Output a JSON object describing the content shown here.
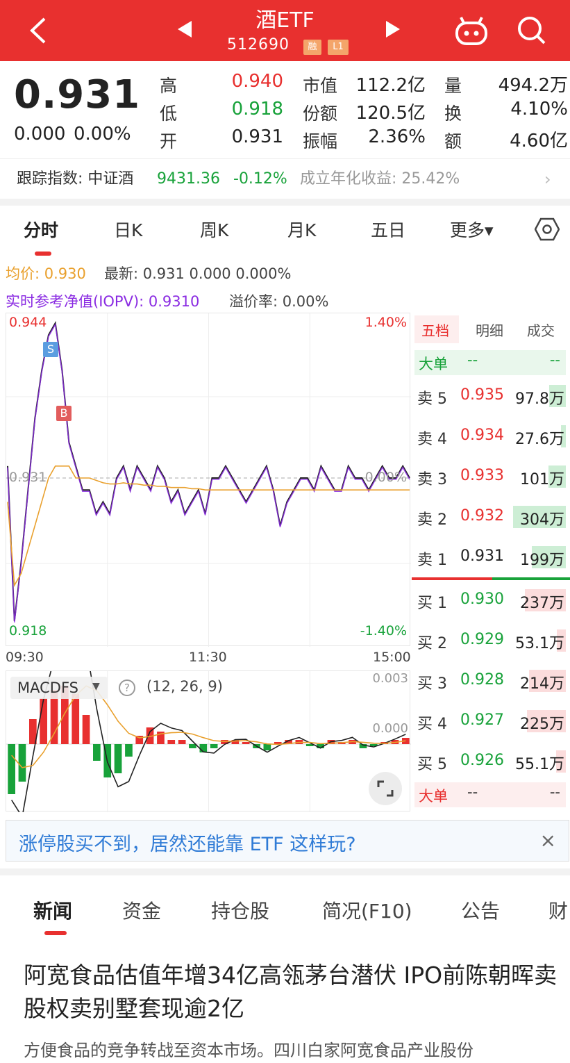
{
  "header": {
    "title": "酒ETF",
    "code": "512690",
    "badge_margin": "融",
    "badge_level": "L1",
    "back_icon": "back-arrow-icon",
    "prev_icon": "prev-triangle-icon",
    "next_icon": "next-triangle-icon",
    "robot_icon": "robot-assistant-icon",
    "search_icon": "search-icon"
  },
  "quote": {
    "price": "0.931",
    "change": "0.000",
    "change_pct": "0.00%",
    "high_label": "高",
    "high": "0.940",
    "low_label": "低",
    "low": "0.918",
    "open_label": "开",
    "open": "0.931",
    "mktcap_label": "市值",
    "mktcap": "112.2亿",
    "shares_label": "份额",
    "shares": "120.5亿",
    "amp_label": "振幅",
    "amp": "2.36%",
    "vol_label": "量",
    "vol": "494.2万",
    "turnover_label": "换",
    "turnover": "4.10%",
    "amount_label": "额",
    "amount": "4.60亿"
  },
  "tracking": {
    "label": "跟踪指数: 中证酒",
    "index_value": "9431.36",
    "index_change": "-0.12%",
    "annual_return": "成立年化收益: 25.42%"
  },
  "chart_tabs": [
    "分时",
    "日K",
    "周K",
    "月K",
    "五日",
    "更多▾"
  ],
  "chart_info": {
    "avg_label": "均价: 0.930",
    "latest": "最新: 0.931  0.000  0.000%",
    "iopv": "实时参考净值(IOPV): 0.9310",
    "premium": "溢价率: 0.00%"
  },
  "chart_data": {
    "type": "line",
    "series": [
      {
        "name": "最新",
        "values": [
          0.932,
          0.919,
          0.924,
          0.93,
          0.936,
          0.94,
          0.943,
          0.944,
          0.94,
          0.934,
          0.932,
          0.93,
          0.93,
          0.928,
          0.929,
          0.928,
          0.931,
          0.932,
          0.93,
          0.932,
          0.931,
          0.93,
          0.932,
          0.931,
          0.929,
          0.93,
          0.928,
          0.929,
          0.93,
          0.928,
          0.931,
          0.931,
          0.932,
          0.931,
          0.93,
          0.929,
          0.93,
          0.931,
          0.932,
          0.93,
          0.927,
          0.929,
          0.93,
          0.931,
          0.931,
          0.93,
          0.932,
          0.931,
          0.93,
          0.93,
          0.932,
          0.931,
          0.931,
          0.93,
          0.931,
          0.932,
          0.931,
          0.931,
          0.932,
          0.931
        ]
      },
      {
        "name": "均价",
        "values": [
          0.929,
          0.922,
          0.923,
          0.925,
          0.927,
          0.929,
          0.931,
          0.932,
          0.932,
          0.932,
          0.931,
          0.931,
          0.931,
          0.9308,
          0.9306,
          0.9305,
          0.9305,
          0.9306,
          0.9305,
          0.9305,
          0.9304,
          0.9304,
          0.9303,
          0.9303,
          0.9302,
          0.9302,
          0.9302,
          0.9301,
          0.9301,
          0.93,
          0.93,
          0.93,
          0.93,
          0.93,
          0.93,
          0.93,
          0.93,
          0.93,
          0.93,
          0.93,
          0.93,
          0.93,
          0.93,
          0.93,
          0.93,
          0.93,
          0.93,
          0.93,
          0.93,
          0.93,
          0.93,
          0.93,
          0.93,
          0.93,
          0.93,
          0.93,
          0.93,
          0.93,
          0.93,
          0.93
        ]
      }
    ],
    "ylim": [
      0.918,
      0.944
    ],
    "y_left_top": "0.944",
    "y_left_mid": "0.931",
    "y_left_bottom": "0.918",
    "y_right_top": "1.40%",
    "y_right_mid": "0.00%",
    "y_right_bottom": "-1.40%",
    "x_ticks": [
      "09:30",
      "11:30",
      "15:00"
    ],
    "sell_marker": "S",
    "buy_marker": "B"
  },
  "macd": {
    "label": "MACDFS",
    "params": "(12, 26, 9)",
    "y_top": "0.003",
    "y_mid": "0.000",
    "help_icon": "help-icon",
    "expand_icon": "expand-icon",
    "histogram": [
      -0.0024,
      -0.0018,
      0.0012,
      0.0022,
      0.0026,
      0.0028,
      0.0024,
      0.0014,
      -0.0008,
      -0.0016,
      -0.0014,
      -0.0006,
      0.0004,
      0.0008,
      0.0006,
      0.0002,
      0.0002,
      -0.0002,
      -0.0004,
      -0.0002,
      0.0002,
      0.0002,
      0.0001,
      -0.0002,
      -0.0003,
      0.0001,
      0.0002,
      0.0002,
      -0.0001,
      -0.0002,
      0.0002,
      0.0001,
      0.0002,
      -0.0002,
      -0.0001,
      0.0001,
      0.0002,
      0.0003
    ]
  },
  "book_tabs": [
    "五档",
    "明细",
    "成交"
  ],
  "book": {
    "big_order_label": "大单",
    "big_order_top": [
      "--",
      "--"
    ],
    "big_order_bottom": [
      "--",
      "--"
    ],
    "asks": [
      {
        "label": "卖 5",
        "price": "0.935",
        "vol": "97.8万",
        "level": 0.32
      },
      {
        "label": "卖 4",
        "price": "0.934",
        "vol": "27.6万",
        "level": 0.09
      },
      {
        "label": "卖 3",
        "price": "0.933",
        "vol": "101万",
        "level": 0.33
      },
      {
        "label": "卖 2",
        "price": "0.932",
        "vol": "304万",
        "level": 1.0
      },
      {
        "label": "卖 1",
        "price": "0.931",
        "vol": "199万",
        "level": 0.65
      }
    ],
    "bids": [
      {
        "label": "买 1",
        "price": "0.930",
        "vol": "237万",
        "level": 0.78
      },
      {
        "label": "买 2",
        "price": "0.929",
        "vol": "53.1万",
        "level": 0.17
      },
      {
        "label": "买 3",
        "price": "0.928",
        "vol": "214万",
        "level": 0.7
      },
      {
        "label": "买 4",
        "price": "0.927",
        "vol": "225万",
        "level": 0.74
      },
      {
        "label": "买 5",
        "price": "0.926",
        "vol": "55.1万",
        "level": 0.18
      }
    ]
  },
  "banner": {
    "text": "涨停股买不到，居然还能靠 ETF 这样玩?",
    "close": "×"
  },
  "news_tabs": [
    "新闻",
    "资金",
    "持仓股",
    "简况(F10)",
    "公告",
    "财"
  ],
  "news": {
    "headline": "阿宽食品估值年增34亿高瓴茅台潜伏 IPO前陈朝晖卖股权卖别墅套现逾2亿",
    "summary": "方便食品的竞争转战至资本市场。四川白家阿宽食品产业股份"
  },
  "colors": {
    "red": "#e8302f",
    "green": "#18a23a",
    "avg": "#e9a02d",
    "iopv": "#8a2be2"
  }
}
